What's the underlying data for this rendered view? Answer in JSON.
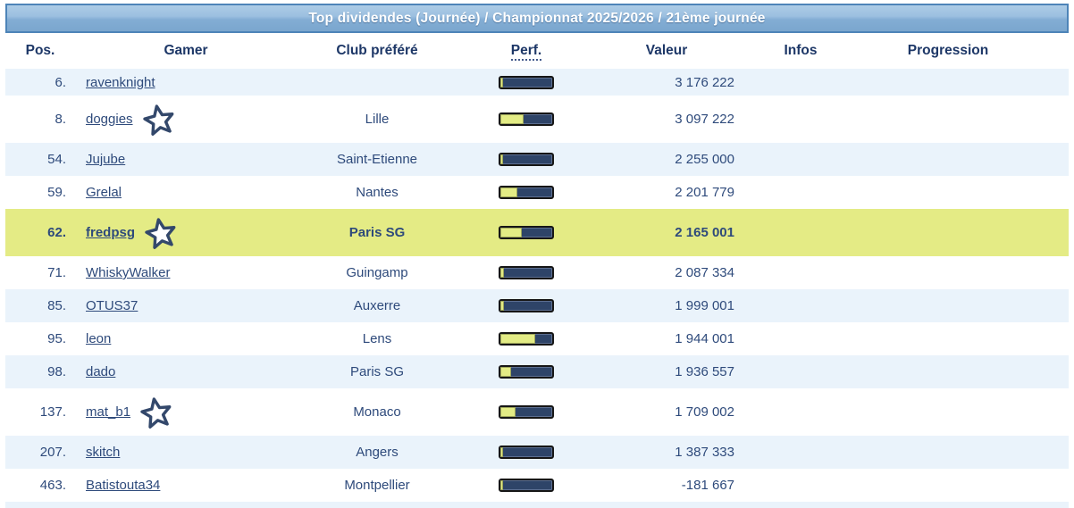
{
  "banner": {
    "title": "Top dividendes (Journée) / Championnat 2025/2026 / 21ème journée"
  },
  "columns": [
    {
      "key": "pos",
      "label": "Pos."
    },
    {
      "key": "gamer",
      "label": "Gamer"
    },
    {
      "key": "club",
      "label": "Club préféré"
    },
    {
      "key": "perf",
      "label": "Perf."
    },
    {
      "key": "valeur",
      "label": "Valeur"
    },
    {
      "key": "infos",
      "label": "Infos"
    },
    {
      "key": "progression",
      "label": "Progression"
    }
  ],
  "rows": [
    {
      "pos": "6.",
      "gamer": "ravenknight",
      "star": false,
      "club": "",
      "perf_pct": 6,
      "valeur": "3 176 222",
      "infos": "",
      "progression": "",
      "highlight": false
    },
    {
      "pos": "8.",
      "gamer": "doggies",
      "star": true,
      "club": "Lille",
      "perf_pct": 45,
      "valeur": "3 097 222",
      "infos": "",
      "progression": "",
      "highlight": false
    },
    {
      "pos": "54.",
      "gamer": "Jujube",
      "star": false,
      "club": "Saint-Etienne",
      "perf_pct": 5,
      "valeur": "2 255 000",
      "infos": "",
      "progression": "",
      "highlight": false
    },
    {
      "pos": "59.",
      "gamer": "Grelal",
      "star": false,
      "club": "Nantes",
      "perf_pct": 32,
      "valeur": "2 201 779",
      "infos": "",
      "progression": "",
      "highlight": false
    },
    {
      "pos": "62.",
      "gamer": "fredpsg",
      "star": true,
      "club": "Paris SG",
      "perf_pct": 42,
      "valeur": "2 165 001",
      "infos": "",
      "progression": "",
      "highlight": true
    },
    {
      "pos": "71.",
      "gamer": "WhiskyWalker",
      "star": false,
      "club": "Guingamp",
      "perf_pct": 7,
      "valeur": "2 087 334",
      "infos": "",
      "progression": "",
      "highlight": false
    },
    {
      "pos": "85.",
      "gamer": "OTUS37",
      "star": false,
      "club": "Auxerre",
      "perf_pct": 7,
      "valeur": "1 999 001",
      "infos": "",
      "progression": "",
      "highlight": false
    },
    {
      "pos": "95.",
      "gamer": "leon",
      "star": false,
      "club": "Lens",
      "perf_pct": 68,
      "valeur": "1 944 001",
      "infos": "",
      "progression": "",
      "highlight": false
    },
    {
      "pos": "98.",
      "gamer": "dado",
      "star": false,
      "club": "Paris SG",
      "perf_pct": 20,
      "valeur": "1 936 557",
      "infos": "",
      "progression": "",
      "highlight": false
    },
    {
      "pos": "137.",
      "gamer": "mat_b1",
      "star": true,
      "club": "Monaco",
      "perf_pct": 30,
      "valeur": "1 709 002",
      "infos": "",
      "progression": "",
      "highlight": false
    },
    {
      "pos": "207.",
      "gamer": "skitch",
      "star": false,
      "club": "Angers",
      "perf_pct": 5,
      "valeur": "1 387 333",
      "infos": "",
      "progression": "",
      "highlight": false
    },
    {
      "pos": "463.",
      "gamer": "Batistouta34",
      "star": false,
      "club": "Montpellier",
      "perf_pct": 5,
      "valeur": "-181 667",
      "infos": "",
      "progression": "",
      "highlight": false
    }
  ],
  "icons": {
    "star": "favorite-star-icon"
  },
  "colors": {
    "banner_top": "#accbe6",
    "banner_bottom": "#7aa6ce",
    "banner_border": "#4d84b8",
    "text_navy": "#2e4a7b",
    "header_navy": "#1d3767",
    "row_alt_blue": "#eaf3fb",
    "highlight_yellow": "#e4eb85",
    "bar_navy": "#2e4468",
    "bar_yellow": "#e3ec85",
    "bar_border": "#161616"
  }
}
